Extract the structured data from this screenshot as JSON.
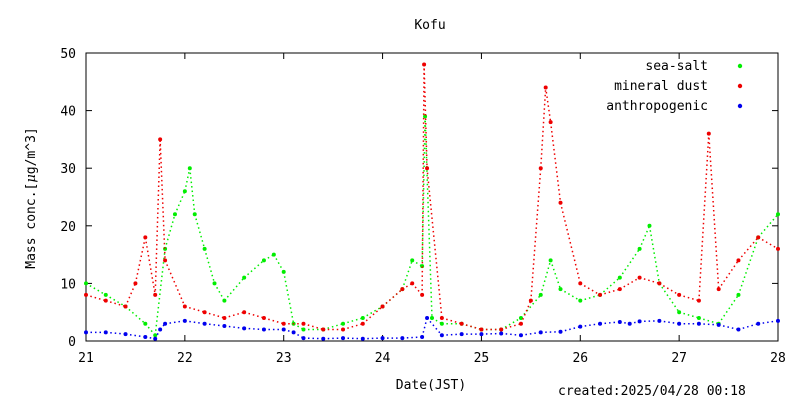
{
  "created_label": "created:2025/04/28 00:18",
  "chart_data": {
    "type": "scatter",
    "title": "Kofu",
    "xlabel": "Date(JST)",
    "ylabel_prefix": "Mass conc.[",
    "ylabel_mu": "μ",
    "ylabel_unit": "g/m",
    "ylabel_exp": "^3",
    "ylabel_suffix": "]",
    "xlim": [
      21,
      28
    ],
    "ylim": [
      0,
      50
    ],
    "xticks": [
      21,
      22,
      23,
      24,
      25,
      26,
      27,
      28
    ],
    "yticks": [
      0,
      10,
      20,
      30,
      40,
      50
    ],
    "grid": false,
    "legend_position": "top-right",
    "series": [
      {
        "name": "sea-salt",
        "color": "#00ee00",
        "x": [
          21.0,
          21.2,
          21.4,
          21.6,
          21.7,
          21.8,
          21.9,
          22.0,
          22.05,
          22.1,
          22.2,
          22.3,
          22.4,
          22.6,
          22.8,
          22.9,
          23.0,
          23.1,
          23.2,
          23.4,
          23.6,
          23.8,
          24.0,
          24.2,
          24.3,
          24.4,
          24.43,
          24.5,
          24.6,
          24.8,
          25.0,
          25.2,
          25.4,
          25.6,
          25.7,
          25.8,
          26.0,
          26.2,
          26.4,
          26.6,
          26.7,
          26.8,
          27.0,
          27.2,
          27.4,
          27.6,
          27.8,
          28.0
        ],
        "values": [
          10,
          8,
          6,
          3,
          1,
          16,
          22,
          26,
          30,
          22,
          16,
          10,
          7,
          11,
          14,
          15,
          12,
          3,
          2,
          2,
          3,
          4,
          6,
          9,
          14,
          13,
          39,
          4,
          3,
          3,
          2,
          2,
          4,
          8,
          14,
          9,
          7,
          8,
          11,
          16,
          20,
          10,
          5,
          4,
          3,
          8,
          18,
          22
        ]
      },
      {
        "name": "mineral dust",
        "color": "#ee0000",
        "x": [
          21.0,
          21.2,
          21.4,
          21.5,
          21.6,
          21.7,
          21.75,
          21.8,
          22.0,
          22.2,
          22.4,
          22.6,
          22.8,
          23.0,
          23.2,
          23.4,
          23.6,
          23.8,
          24.0,
          24.2,
          24.3,
          24.4,
          24.42,
          24.45,
          24.6,
          24.8,
          25.0,
          25.2,
          25.4,
          25.5,
          25.6,
          25.65,
          25.7,
          25.8,
          26.0,
          26.2,
          26.4,
          26.6,
          26.8,
          27.0,
          27.2,
          27.3,
          27.4,
          27.6,
          27.8,
          28.0
        ],
        "values": [
          8,
          7,
          6,
          10,
          18,
          8,
          35,
          14,
          6,
          5,
          4,
          5,
          4,
          3,
          3,
          2,
          2,
          3,
          6,
          9,
          10,
          8,
          48,
          30,
          4,
          3,
          2,
          2,
          3,
          7,
          30,
          44,
          38,
          24,
          10,
          8,
          9,
          11,
          10,
          8,
          7,
          36,
          9,
          14,
          18,
          16
        ]
      },
      {
        "name": "anthropogenic",
        "color": "#0000ee",
        "x": [
          21.0,
          21.2,
          21.4,
          21.6,
          21.7,
          21.75,
          21.8,
          22.0,
          22.2,
          22.4,
          22.6,
          22.8,
          23.0,
          23.1,
          23.2,
          23.4,
          23.6,
          23.8,
          24.0,
          24.2,
          24.4,
          24.45,
          24.6,
          24.8,
          25.0,
          25.2,
          25.4,
          25.6,
          25.8,
          26.0,
          26.2,
          26.4,
          26.5,
          26.6,
          26.8,
          27.0,
          27.2,
          27.4,
          27.6,
          27.8,
          28.0
        ],
        "values": [
          1.5,
          1.5,
          1.2,
          0.7,
          0.4,
          2.0,
          3.0,
          3.5,
          3.0,
          2.6,
          2.2,
          2.0,
          2.0,
          1.5,
          0.5,
          0.4,
          0.5,
          0.4,
          0.5,
          0.5,
          0.7,
          4.0,
          1.0,
          1.2,
          1.2,
          1.3,
          1.0,
          1.5,
          1.6,
          2.5,
          3.0,
          3.3,
          3.0,
          3.4,
          3.5,
          3.0,
          3.0,
          2.8,
          2.0,
          3.0,
          3.5
        ]
      }
    ]
  }
}
